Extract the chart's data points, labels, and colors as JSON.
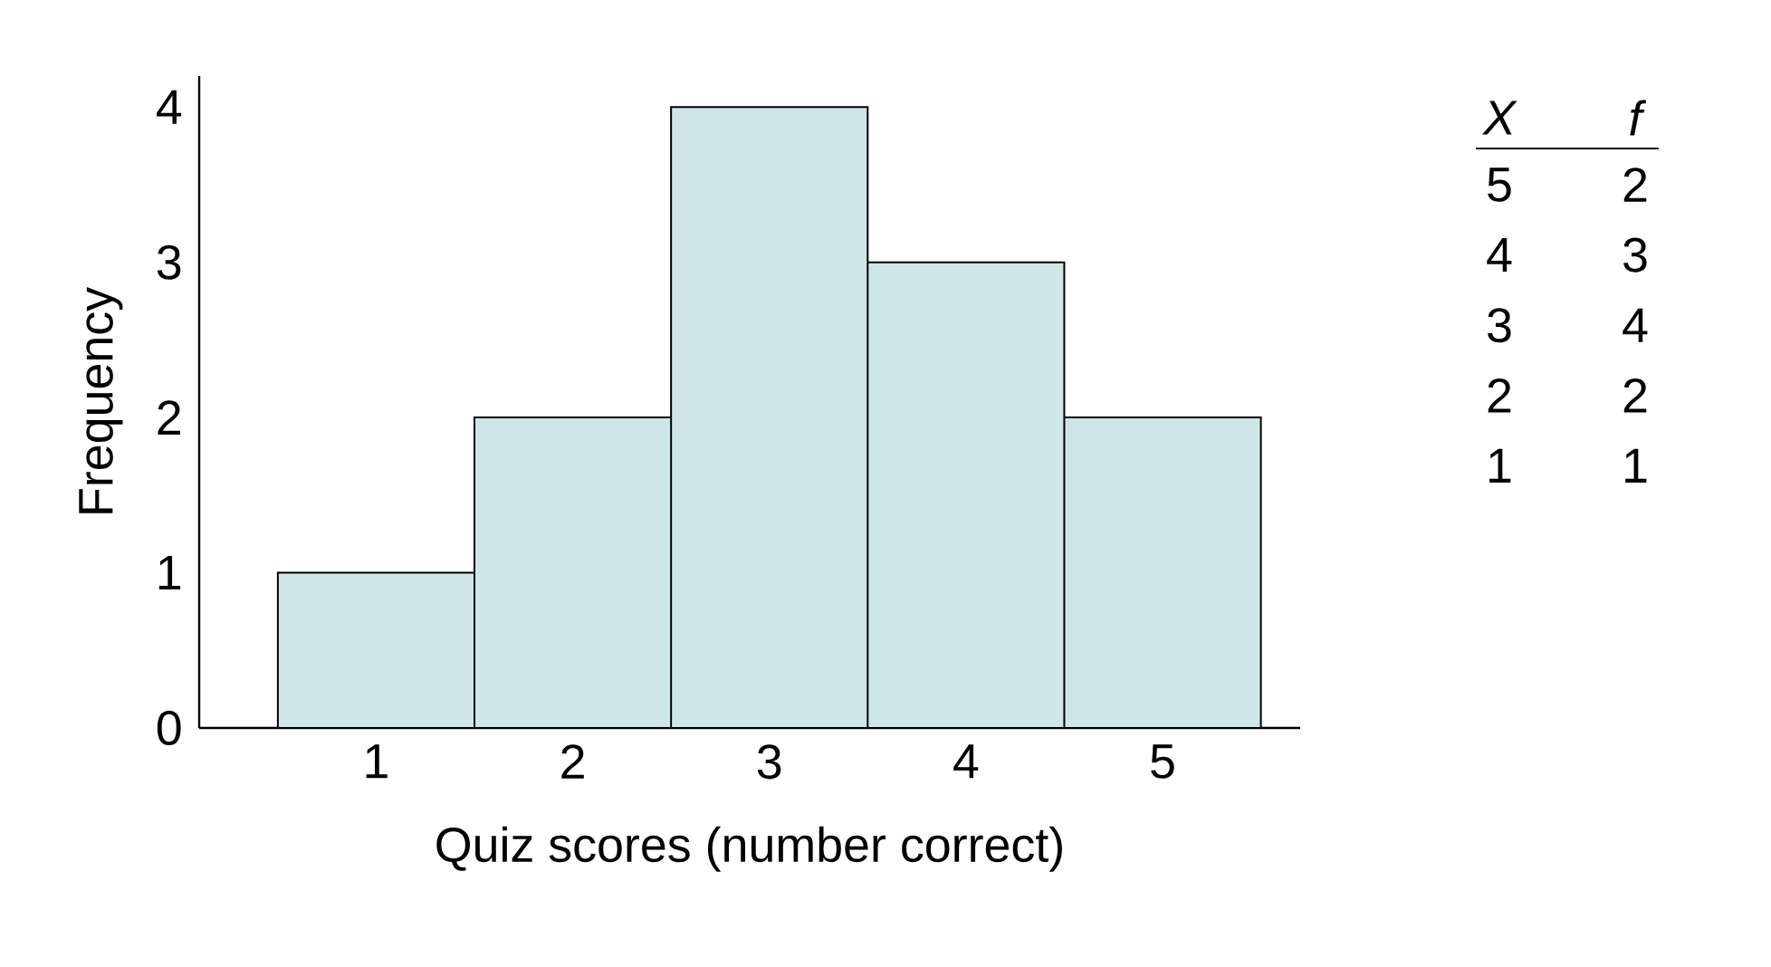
{
  "chart_data": {
    "type": "histogram",
    "bins": [
      0.5,
      1.5,
      2.5,
      3.5,
      4.5,
      5.5
    ],
    "values": [
      1,
      2,
      4,
      3,
      2
    ],
    "color": "#cfe6e8",
    "xlabel": "Quiz scores (number correct)",
    "ylabel": "Frequency",
    "xlim": [
      0.1,
      5.7
    ],
    "ylim": [
      0,
      4.2
    ],
    "xticks": [
      1,
      2,
      3,
      4,
      5
    ],
    "yticks": [
      0,
      1,
      2,
      3,
      4
    ],
    "annotations": [
      "X",
      "f",
      "5",
      "2",
      "4",
      "3",
      "3",
      "4",
      "2",
      "2",
      "1",
      "1"
    ]
  }
}
